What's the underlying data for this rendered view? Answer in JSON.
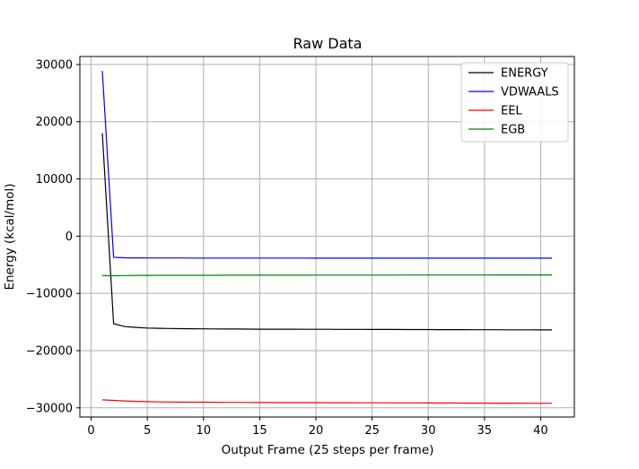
{
  "chart_data": {
    "type": "line",
    "title": "Raw Data",
    "xlabel": "Output Frame (25 steps per frame)",
    "ylabel": "Energy (kcal/mol)",
    "xlim": [
      -1.0,
      43.0
    ],
    "ylim": [
      -31600,
      31400
    ],
    "xticks": [
      0,
      5,
      10,
      15,
      20,
      25,
      30,
      35,
      40
    ],
    "yticks": [
      -30000,
      -20000,
      -10000,
      0,
      10000,
      20000,
      30000
    ],
    "grid": true,
    "legend_position": "top-right",
    "x": [
      1,
      2,
      3,
      4,
      5,
      6,
      7,
      8,
      9,
      10,
      11,
      12,
      13,
      14,
      15,
      16,
      17,
      18,
      19,
      20,
      21,
      22,
      23,
      24,
      25,
      26,
      27,
      28,
      29,
      30,
      31,
      32,
      33,
      34,
      35,
      36,
      37,
      38,
      39,
      40,
      41
    ],
    "series": [
      {
        "name": "ENERGY",
        "color": "#000000",
        "values": [
          18000,
          -15300,
          -15800,
          -15950,
          -16050,
          -16100,
          -16130,
          -16160,
          -16180,
          -16200,
          -16210,
          -16220,
          -16230,
          -16240,
          -16250,
          -16255,
          -16260,
          -16265,
          -16270,
          -16275,
          -16280,
          -16285,
          -16290,
          -16295,
          -16300,
          -16305,
          -16310,
          -16315,
          -16320,
          -16325,
          -16330,
          -16335,
          -16340,
          -16345,
          -16350,
          -16355,
          -16360,
          -16365,
          -16370,
          -16375,
          -16380
        ]
      },
      {
        "name": "VDWAALS",
        "color": "#0000ff",
        "values": [
          28900,
          -3700,
          -3780,
          -3800,
          -3810,
          -3815,
          -3820,
          -3822,
          -3824,
          -3826,
          -3828,
          -3830,
          -3831,
          -3832,
          -3833,
          -3834,
          -3835,
          -3836,
          -3837,
          -3838,
          -3838,
          -3839,
          -3839,
          -3840,
          -3840,
          -3841,
          -3841,
          -3842,
          -3842,
          -3843,
          -3843,
          -3844,
          -3844,
          -3845,
          -3845,
          -3845,
          -3846,
          -3846,
          -3846,
          -3847,
          -3847
        ]
      },
      {
        "name": "EEL",
        "color": "#ff0000",
        "values": [
          -28600,
          -28700,
          -28800,
          -28880,
          -28920,
          -28960,
          -28980,
          -29000,
          -29010,
          -29020,
          -29030,
          -29040,
          -29050,
          -29060,
          -29070,
          -29080,
          -29085,
          -29090,
          -29095,
          -29100,
          -29105,
          -29110,
          -29115,
          -29120,
          -29125,
          -29130,
          -29135,
          -29140,
          -29145,
          -29150,
          -29155,
          -29160,
          -29165,
          -29170,
          -29175,
          -29180,
          -29185,
          -29190,
          -29195,
          -29200,
          -29205
        ]
      },
      {
        "name": "EGB",
        "color": "#008000",
        "values": [
          -6900,
          -6920,
          -6880,
          -6860,
          -6850,
          -6845,
          -6840,
          -6838,
          -6836,
          -6834,
          -6832,
          -6830,
          -6828,
          -6826,
          -6824,
          -6822,
          -6820,
          -6818,
          -6816,
          -6814,
          -6812,
          -6810,
          -6808,
          -6806,
          -6804,
          -6802,
          -6800,
          -6798,
          -6796,
          -6794,
          -6792,
          -6790,
          -6788,
          -6786,
          -6784,
          -6782,
          -6780,
          -6778,
          -6776,
          -6774,
          -6772
        ]
      }
    ]
  }
}
